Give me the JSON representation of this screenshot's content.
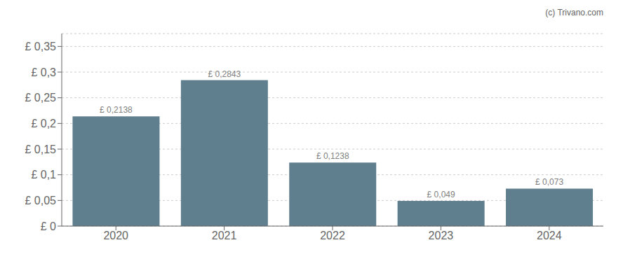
{
  "chart_data": {
    "type": "bar",
    "categories": [
      "2020",
      "2021",
      "2022",
      "2023",
      "2024"
    ],
    "values": [
      0.2138,
      0.2843,
      0.1238,
      0.049,
      0.073
    ],
    "value_labels": [
      "£ 0,2138",
      "£ 0,2843",
      "£ 0,1238",
      "£ 0,049",
      "£ 0,073"
    ],
    "color": "#5f7f8f",
    "ylim": [
      0,
      0.375
    ],
    "yticks": [
      {
        "value": 0,
        "label": "£ 0"
      },
      {
        "value": 0.05,
        "label": "£ 0,05"
      },
      {
        "value": 0.1,
        "label": "£ 0,1"
      },
      {
        "value": 0.15,
        "label": "£ 0,15"
      },
      {
        "value": 0.2,
        "label": "£ 0,2"
      },
      {
        "value": 0.25,
        "label": "£ 0,25"
      },
      {
        "value": 0.3,
        "label": "£ 0,3"
      },
      {
        "value": 0.35,
        "label": "£ 0,35"
      }
    ],
    "grid": true,
    "data_labels": true,
    "annotations": [
      "(c) Trivano.com"
    ]
  }
}
